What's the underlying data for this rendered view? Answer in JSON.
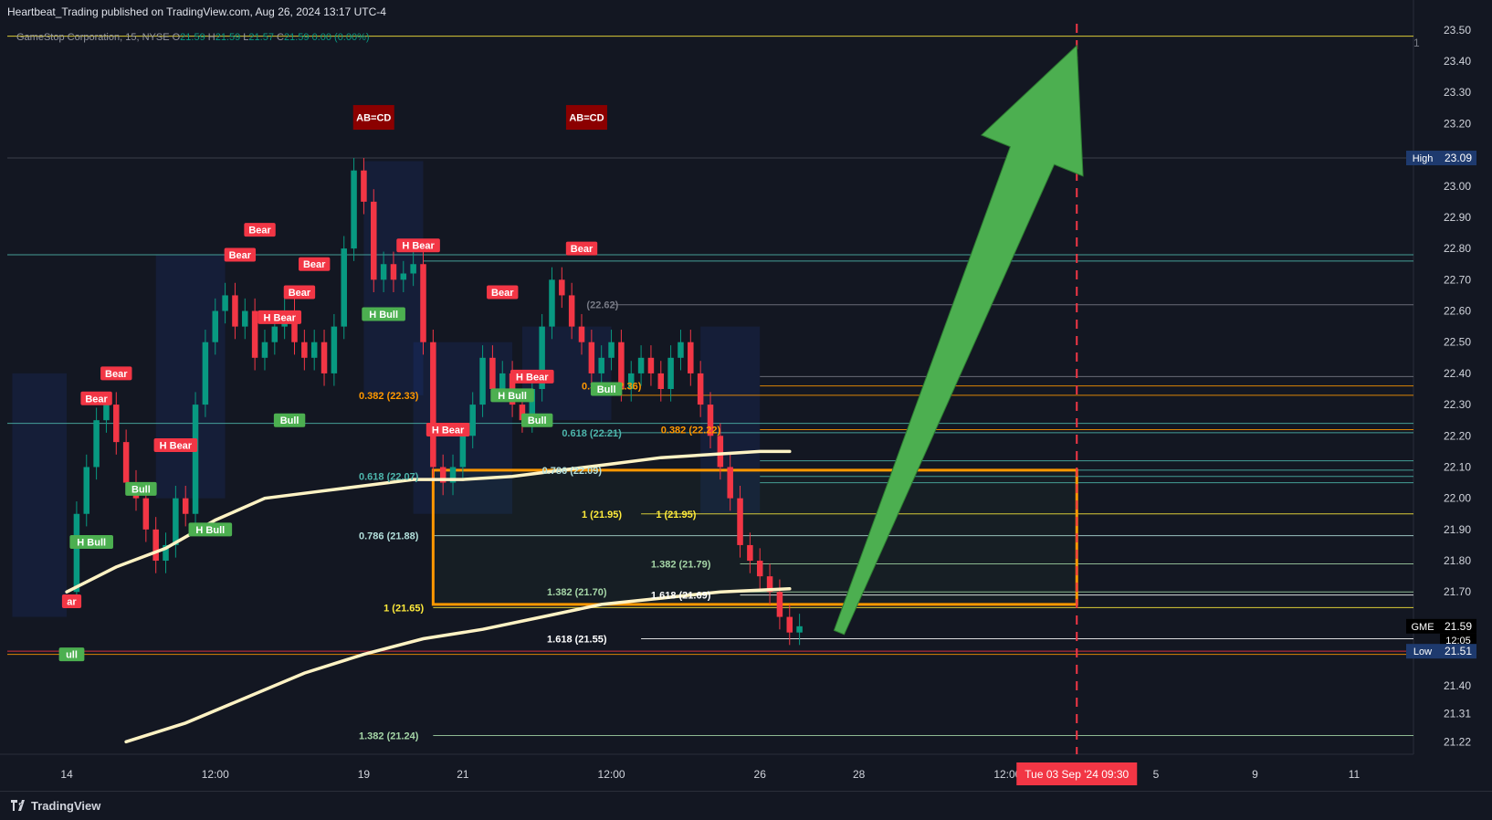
{
  "header": {
    "publisher_text": "Heartbeat_Trading published on TradingView.com, Aug 26, 2024 13:17 UTC-4",
    "symbol_desc": "GameStop Corporation, 15, NYSE",
    "o_label": "O",
    "o_value": "21.59",
    "h_label": "H",
    "h_value": "21.59",
    "l_label": "L",
    "l_value": "21.57",
    "c_label": "C",
    "c_value": "21.59",
    "change": "0.00 (0.00%)",
    "pane_number": "1"
  },
  "footer": {
    "brand": "TradingView"
  },
  "colors": {
    "background": "#131722",
    "up": "#089981",
    "down": "#f23645",
    "vwap": "#fff3c4",
    "orange": "#ff9800",
    "arrow": "#4caf50",
    "yellow": "#ffeb3b",
    "teal": "#4db6ac"
  },
  "chart_data": {
    "type": "line",
    "title": "GameStop Corporation, 15, NYSE",
    "y_axis": {
      "ylim": [
        21.18,
        23.52
      ],
      "ticks": [
        "23.50",
        "23.40",
        "23.30",
        "23.20",
        "23.09",
        "23.00",
        "22.90",
        "22.80",
        "22.70",
        "22.60",
        "22.50",
        "22.40",
        "22.30",
        "22.20",
        "22.10",
        "22.00",
        "21.90",
        "21.80",
        "21.70",
        "21.59",
        "21.51",
        "21.40",
        "21.31",
        "21.22"
      ],
      "tick_values": [
        23.5,
        23.4,
        23.3,
        23.2,
        23.09,
        23.0,
        22.9,
        22.8,
        22.7,
        22.6,
        22.5,
        22.4,
        22.3,
        22.2,
        22.1,
        22.0,
        21.9,
        21.8,
        21.7,
        21.59,
        21.51,
        21.4,
        21.31,
        21.22
      ],
      "badges": [
        {
          "label": "High",
          "value": "23.09",
          "y": 23.09,
          "color": "#1e3a6e"
        },
        {
          "label": "GME",
          "value": "21.59",
          "y": 21.59,
          "color": "#000000",
          "sub": "12:05"
        },
        {
          "label": "Low",
          "value": "21.51",
          "y": 21.51,
          "color": "#1e3a6e"
        }
      ]
    },
    "x_axis": {
      "ticks": [
        "14",
        "12:00",
        "19",
        "21",
        "12:00",
        "26",
        "28",
        "12:00",
        "5",
        "9",
        "11"
      ],
      "tick_x": [
        0,
        1.5,
        3,
        4,
        5.5,
        7,
        8,
        9.5,
        11,
        12,
        13
      ],
      "highlight": {
        "label": "Tue 03 Sep '24   09:30",
        "x": 10.2
      }
    },
    "price_series": {
      "name": "GME",
      "x": [
        0,
        0.1,
        0.2,
        0.3,
        0.4,
        0.5,
        0.6,
        0.7,
        0.8,
        0.9,
        1.0,
        1.1,
        1.2,
        1.3,
        1.4,
        1.5,
        1.6,
        1.7,
        1.8,
        1.9,
        2.0,
        2.1,
        2.2,
        2.3,
        2.4,
        2.5,
        2.6,
        2.7,
        2.8,
        2.9,
        3.0,
        3.1,
        3.2,
        3.3,
        3.4,
        3.5,
        3.6,
        3.7,
        3.8,
        3.9,
        4.0,
        4.1,
        4.2,
        4.3,
        4.4,
        4.5,
        4.6,
        4.7,
        4.8,
        4.9,
        5.0,
        5.1,
        5.2,
        5.3,
        5.4,
        5.5,
        5.6,
        5.7,
        5.8,
        5.9,
        6.0,
        6.1,
        6.2,
        6.3,
        6.4,
        6.5,
        6.6,
        6.7,
        6.8,
        6.9,
        7.0,
        7.1,
        7.2,
        7.3,
        7.4
      ],
      "y": [
        21.7,
        21.95,
        22.1,
        22.25,
        22.3,
        22.18,
        22.05,
        22.0,
        21.9,
        21.8,
        21.85,
        22.0,
        21.95,
        22.3,
        22.5,
        22.6,
        22.65,
        22.55,
        22.6,
        22.45,
        22.5,
        22.55,
        22.6,
        22.5,
        22.45,
        22.5,
        22.4,
        22.55,
        22.8,
        23.05,
        22.95,
        22.7,
        22.75,
        22.7,
        22.72,
        22.75,
        22.5,
        22.1,
        22.05,
        22.1,
        22.2,
        22.3,
        22.45,
        22.35,
        22.4,
        22.3,
        22.25,
        22.35,
        22.55,
        22.7,
        22.65,
        22.55,
        22.5,
        22.4,
        22.45,
        22.5,
        22.35,
        22.4,
        22.45,
        22.4,
        22.35,
        22.45,
        22.5,
        22.4,
        22.3,
        22.2,
        22.1,
        22.0,
        21.85,
        21.8,
        21.75,
        21.7,
        21.62,
        21.57,
        21.59
      ]
    },
    "vwap_series": {
      "x": [
        0,
        0.5,
        1.0,
        1.5,
        2.0,
        2.5,
        3.0,
        3.5,
        4.0,
        4.5,
        5.0,
        5.5,
        6.0,
        6.5,
        7.0,
        7.3
      ],
      "y": [
        21.7,
        21.78,
        21.84,
        21.93,
        22.0,
        22.02,
        22.04,
        22.06,
        22.06,
        22.07,
        22.09,
        22.11,
        22.13,
        22.14,
        22.15,
        22.15
      ]
    },
    "vwap_series_2": {
      "x": [
        0.6,
        1.2,
        1.8,
        2.4,
        3.0,
        3.6,
        4.2,
        4.8,
        5.4,
        6.0,
        6.6,
        7.3
      ],
      "y": [
        21.22,
        21.28,
        21.36,
        21.44,
        21.5,
        21.55,
        21.58,
        21.62,
        21.66,
        21.68,
        21.7,
        21.71
      ]
    },
    "fib_labels": [
      {
        "text": "0.382 (22.33)",
        "x": 2.95,
        "y": 22.33,
        "color": "#ff9800"
      },
      {
        "text": "0.382 (22.36)",
        "x": 5.2,
        "y": 22.36,
        "color": "#ff9800"
      },
      {
        "text": "0.382 (22.22)",
        "x": 6.0,
        "y": 22.22,
        "color": "#ff9800"
      },
      {
        "text": "0.618 (22.21)",
        "x": 5.0,
        "y": 22.21,
        "color": "#4db6ac"
      },
      {
        "text": "0.618 (22.07)",
        "x": 2.95,
        "y": 22.07,
        "color": "#4db6ac"
      },
      {
        "text": "0.786 (22.09)",
        "x": 4.8,
        "y": 22.09,
        "color": "#b2dfdb"
      },
      {
        "text": "0.786 (21.88)",
        "x": 2.95,
        "y": 21.88,
        "color": "#b2dfdb"
      },
      {
        "text": "1 (21.95)",
        "x": 5.2,
        "y": 21.95,
        "color": "#ffeb3b"
      },
      {
        "text": "1 (21.95)",
        "x": 5.95,
        "y": 21.95,
        "color": "#ffeb3b"
      },
      {
        "text": "1 (21.65)",
        "x": 3.2,
        "y": 21.65,
        "color": "#ffeb3b"
      },
      {
        "text": "1.382 (21.79)",
        "x": 5.9,
        "y": 21.79,
        "color": "#a5d6a7"
      },
      {
        "text": "1.382 (21.70)",
        "x": 4.85,
        "y": 21.7,
        "color": "#a5d6a7"
      },
      {
        "text": "1.382 (21.24)",
        "x": 2.95,
        "y": 21.24,
        "color": "#a5d6a7"
      },
      {
        "text": "1.618 (21.69)",
        "x": 5.9,
        "y": 21.69,
        "color": "#ffffff"
      },
      {
        "text": "1.618 (21.55)",
        "x": 4.85,
        "y": 21.55,
        "color": "#ffffff"
      },
      {
        "text": "(22.62)",
        "x": 5.25,
        "y": 22.62,
        "color": "#787b86"
      }
    ],
    "pattern_labels": [
      {
        "text": "AB=CD",
        "x": 3.1,
        "y": 23.22,
        "kind": "dark"
      },
      {
        "text": "AB=CD",
        "x": 5.25,
        "y": 23.22,
        "kind": "dark"
      },
      {
        "text": "Bear",
        "x": 0.5,
        "y": 22.4,
        "kind": "bear"
      },
      {
        "text": "Bear",
        "x": 0.3,
        "y": 22.32,
        "kind": "bear"
      },
      {
        "text": "Bear",
        "x": 1.95,
        "y": 22.86,
        "kind": "bear"
      },
      {
        "text": "Bear",
        "x": 1.75,
        "y": 22.78,
        "kind": "bear"
      },
      {
        "text": "Bear",
        "x": 2.5,
        "y": 22.75,
        "kind": "bear"
      },
      {
        "text": "Bear",
        "x": 2.35,
        "y": 22.66,
        "kind": "bear"
      },
      {
        "text": "Bear",
        "x": 4.4,
        "y": 22.66,
        "kind": "bear"
      },
      {
        "text": "Bear",
        "x": 5.2,
        "y": 22.8,
        "kind": "bear"
      },
      {
        "text": "H Bear",
        "x": 1.1,
        "y": 22.17,
        "kind": "bear"
      },
      {
        "text": "H Bear",
        "x": 2.15,
        "y": 22.58,
        "kind": "bear"
      },
      {
        "text": "H Bear",
        "x": 3.55,
        "y": 22.81,
        "kind": "bear"
      },
      {
        "text": "H Bear",
        "x": 3.85,
        "y": 22.22,
        "kind": "bear"
      },
      {
        "text": "H Bear",
        "x": 4.7,
        "y": 22.39,
        "kind": "bear"
      },
      {
        "text": "Bull",
        "x": 0.75,
        "y": 22.03,
        "kind": "bull"
      },
      {
        "text": "Bull",
        "x": 2.25,
        "y": 22.25,
        "kind": "bull"
      },
      {
        "text": "Bull",
        "x": 4.75,
        "y": 22.25,
        "kind": "bull"
      },
      {
        "text": "Bull",
        "x": 5.45,
        "y": 22.35,
        "kind": "bull"
      },
      {
        "text": "H Bull",
        "x": 0.25,
        "y": 21.86,
        "kind": "bull"
      },
      {
        "text": "H Bull",
        "x": 1.45,
        "y": 21.9,
        "kind": "bull"
      },
      {
        "text": "H Bull",
        "x": 3.2,
        "y": 22.59,
        "kind": "bull"
      },
      {
        "text": "H Bull",
        "x": 4.5,
        "y": 22.33,
        "kind": "bull"
      },
      {
        "text": "ull",
        "x": 0.05,
        "y": 21.5,
        "kind": "bull"
      },
      {
        "text": "ar",
        "x": 0.05,
        "y": 21.67,
        "kind": "bear"
      }
    ],
    "arrow": {
      "from_x": 7.8,
      "from_y": 21.57,
      "to_x": 10.2,
      "to_y": 23.45
    }
  }
}
